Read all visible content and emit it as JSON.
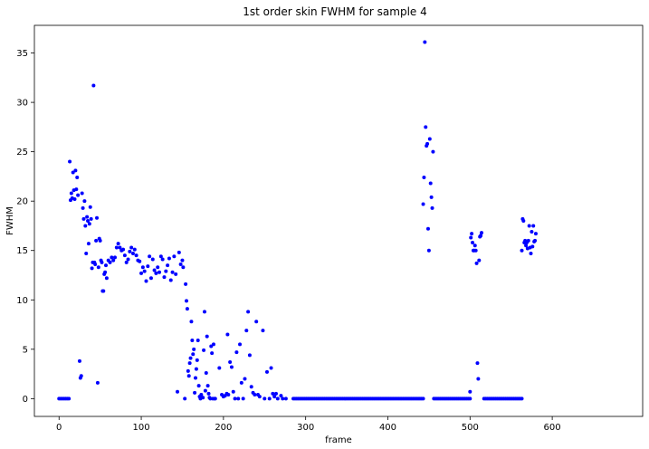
{
  "chart_data": {
    "type": "scatter",
    "title": "1st order skin FWHM for sample 4",
    "xlabel": "frame",
    "ylabel": "FWHM",
    "xlim": [
      -30,
      710
    ],
    "ylim": [
      -1.8,
      37.8
    ],
    "xticks": [
      0,
      100,
      200,
      300,
      400,
      500,
      600
    ],
    "yticks": [
      0,
      5,
      10,
      15,
      20,
      25,
      30,
      35
    ],
    "grid": false,
    "legend": "none",
    "marker_color": "#0000ff",
    "series": [
      {
        "values_xy": [
          [
            0,
            0
          ],
          [
            2,
            0
          ],
          [
            4,
            0
          ],
          [
            6,
            0
          ],
          [
            8,
            0
          ],
          [
            10,
            0
          ],
          [
            12,
            0
          ],
          [
            13,
            24.0
          ],
          [
            14,
            20.1
          ],
          [
            15,
            20.8
          ],
          [
            16,
            20.3
          ],
          [
            17,
            22.9
          ],
          [
            18,
            21.1
          ],
          [
            19,
            20.2
          ],
          [
            20,
            23.1
          ],
          [
            21,
            21.2
          ],
          [
            22,
            22.4
          ],
          [
            23,
            20.6
          ],
          [
            25,
            3.8
          ],
          [
            26,
            2.1
          ],
          [
            27,
            2.3
          ],
          [
            28,
            20.8
          ],
          [
            29,
            19.3
          ],
          [
            30,
            18.2
          ],
          [
            31,
            20.0
          ],
          [
            32,
            17.5
          ],
          [
            33,
            14.7
          ],
          [
            34,
            18.4
          ],
          [
            35,
            18.0
          ],
          [
            36,
            15.7
          ],
          [
            37,
            17.7
          ],
          [
            38,
            19.4
          ],
          [
            39,
            18.2
          ],
          [
            40,
            13.2
          ],
          [
            41,
            13.8
          ],
          [
            42,
            31.7
          ],
          [
            43,
            13.8
          ],
          [
            44,
            13.6
          ],
          [
            45,
            16.0
          ],
          [
            46,
            18.3
          ],
          [
            47,
            1.6
          ],
          [
            48,
            13.3
          ],
          [
            49,
            16.2
          ],
          [
            50,
            16.0
          ],
          [
            51,
            14.0
          ],
          [
            52,
            13.8
          ],
          [
            53,
            10.9
          ],
          [
            54,
            10.9
          ],
          [
            55,
            12.6
          ],
          [
            56,
            12.8
          ],
          [
            57,
            13.5
          ],
          [
            58,
            12.2
          ],
          [
            60,
            14.0
          ],
          [
            62,
            13.8
          ],
          [
            64,
            14.3
          ],
          [
            66,
            14.0
          ],
          [
            68,
            14.3
          ],
          [
            70,
            15.3
          ],
          [
            72,
            15.7
          ],
          [
            74,
            15.3
          ],
          [
            76,
            15.0
          ],
          [
            78,
            15.1
          ],
          [
            80,
            14.5
          ],
          [
            82,
            13.8
          ],
          [
            84,
            14.1
          ],
          [
            86,
            14.9
          ],
          [
            88,
            15.3
          ],
          [
            90,
            14.7
          ],
          [
            92,
            15.1
          ],
          [
            94,
            14.5
          ],
          [
            96,
            14.0
          ],
          [
            98,
            13.9
          ],
          [
            100,
            12.7
          ],
          [
            102,
            13.3
          ],
          [
            104,
            12.9
          ],
          [
            106,
            11.9
          ],
          [
            108,
            13.4
          ],
          [
            110,
            14.4
          ],
          [
            112,
            12.2
          ],
          [
            114,
            14.1
          ],
          [
            116,
            13.0
          ],
          [
            118,
            12.7
          ],
          [
            120,
            13.3
          ],
          [
            122,
            12.8
          ],
          [
            124,
            14.4
          ],
          [
            126,
            14.1
          ],
          [
            128,
            12.3
          ],
          [
            130,
            12.9
          ],
          [
            132,
            13.5
          ],
          [
            134,
            14.2
          ],
          [
            136,
            12.0
          ],
          [
            138,
            12.8
          ],
          [
            140,
            14.4
          ],
          [
            142,
            12.6
          ],
          [
            144,
            0.7
          ],
          [
            146,
            14.8
          ],
          [
            148,
            13.6
          ],
          [
            150,
            14.0
          ],
          [
            151,
            13.3
          ],
          [
            153,
            0
          ],
          [
            154,
            11.6
          ],
          [
            155,
            9.9
          ],
          [
            156,
            9.1
          ],
          [
            157,
            2.8
          ],
          [
            158,
            2.3
          ],
          [
            159,
            3.6
          ],
          [
            160,
            4.1
          ],
          [
            161,
            7.8
          ],
          [
            162,
            5.9
          ],
          [
            163,
            4.5
          ],
          [
            164,
            5.0
          ],
          [
            165,
            0.6
          ],
          [
            166,
            2.1
          ],
          [
            167,
            3.0
          ],
          [
            168,
            3.9
          ],
          [
            169,
            5.9
          ],
          [
            170,
            1.3
          ],
          [
            171,
            0.2
          ],
          [
            172,
            0
          ],
          [
            173,
            0.4
          ],
          [
            175,
            0.1
          ],
          [
            176,
            4.9
          ],
          [
            177,
            8.8
          ],
          [
            178,
            0.8
          ],
          [
            179,
            2.6
          ],
          [
            180,
            6.3
          ],
          [
            181,
            1.3
          ],
          [
            182,
            0.5
          ],
          [
            183,
            0.1
          ],
          [
            184,
            0
          ],
          [
            185,
            5.3
          ],
          [
            186,
            4.6
          ],
          [
            187,
            0
          ],
          [
            188,
            5.5
          ],
          [
            189,
            0
          ],
          [
            190,
            0
          ],
          [
            195,
            3.1
          ],
          [
            198,
            0.4
          ],
          [
            200,
            0.2
          ],
          [
            202,
            0.3
          ],
          [
            204,
            0.5
          ],
          [
            205,
            6.5
          ],
          [
            206,
            0.4
          ],
          [
            208,
            3.7
          ],
          [
            210,
            3.2
          ],
          [
            212,
            0.7
          ],
          [
            214,
            0
          ],
          [
            216,
            4.7
          ],
          [
            218,
            0
          ],
          [
            220,
            5.5
          ],
          [
            222,
            1.6
          ],
          [
            224,
            0
          ],
          [
            226,
            2.0
          ],
          [
            228,
            6.9
          ],
          [
            230,
            8.8
          ],
          [
            232,
            4.4
          ],
          [
            234,
            1.2
          ],
          [
            236,
            0.6
          ],
          [
            238,
            0.4
          ],
          [
            240,
            7.8
          ],
          [
            242,
            0.4
          ],
          [
            244,
            0.2
          ],
          [
            248,
            6.9
          ],
          [
            250,
            0
          ],
          [
            253,
            2.7
          ],
          [
            256,
            0
          ],
          [
            258,
            3.1
          ],
          [
            260,
            0.5
          ],
          [
            262,
            0.2
          ],
          [
            264,
            0.5
          ],
          [
            266,
            0
          ],
          [
            270,
            0.3
          ],
          [
            272,
            0
          ],
          [
            276,
            0
          ]
        ]
      }
    ]
  }
}
